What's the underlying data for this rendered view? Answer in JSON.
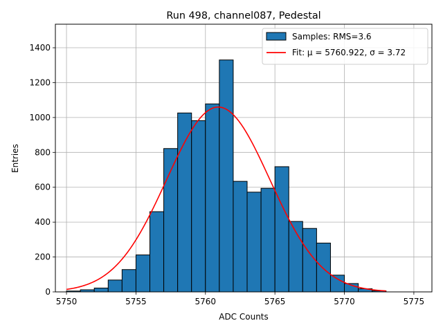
{
  "chart_data": {
    "type": "bar",
    "title": "Run 498, channel087, Pedestal",
    "xlabel": "ADC Counts",
    "ylabel": "Entries",
    "xlim": [
      5749.2,
      5776.3
    ],
    "ylim": [
      0,
      1535
    ],
    "xticks": [
      5750,
      5755,
      5760,
      5765,
      5770,
      5775
    ],
    "yticks": [
      0,
      200,
      400,
      600,
      800,
      1000,
      1200,
      1400
    ],
    "grid": true,
    "legend_position": "top-right",
    "bin_width": 1,
    "bins": [
      {
        "x0": 5750,
        "value": 5
      },
      {
        "x0": 5751,
        "value": 12
      },
      {
        "x0": 5752,
        "value": 22
      },
      {
        "x0": 5753,
        "value": 68
      },
      {
        "x0": 5754,
        "value": 128
      },
      {
        "x0": 5755,
        "value": 212
      },
      {
        "x0": 5756,
        "value": 460
      },
      {
        "x0": 5757,
        "value": 822
      },
      {
        "x0": 5758,
        "value": 1026
      },
      {
        "x0": 5759,
        "value": 982
      },
      {
        "x0": 5760,
        "value": 1078
      },
      {
        "x0": 5761,
        "value": 1330
      },
      {
        "x0": 5762,
        "value": 634
      },
      {
        "x0": 5763,
        "value": 572
      },
      {
        "x0": 5764,
        "value": 594
      },
      {
        "x0": 5765,
        "value": 718
      },
      {
        "x0": 5766,
        "value": 404
      },
      {
        "x0": 5767,
        "value": 364
      },
      {
        "x0": 5768,
        "value": 280
      },
      {
        "x0": 5769,
        "value": 96
      },
      {
        "x0": 5770,
        "value": 48
      },
      {
        "x0": 5771,
        "value": 18
      },
      {
        "x0": 5772,
        "value": 6
      }
    ],
    "fit": {
      "mu": 5760.922,
      "sigma": 3.72,
      "amplitude": 1060,
      "x_range": [
        5750,
        5773
      ]
    },
    "series": [
      {
        "name": "Samples: RMS=3.6",
        "color": "#1f77b4"
      },
      {
        "name": "Fit: μ = 5760.922, σ = 3.72",
        "color": "#ff0000"
      }
    ]
  }
}
